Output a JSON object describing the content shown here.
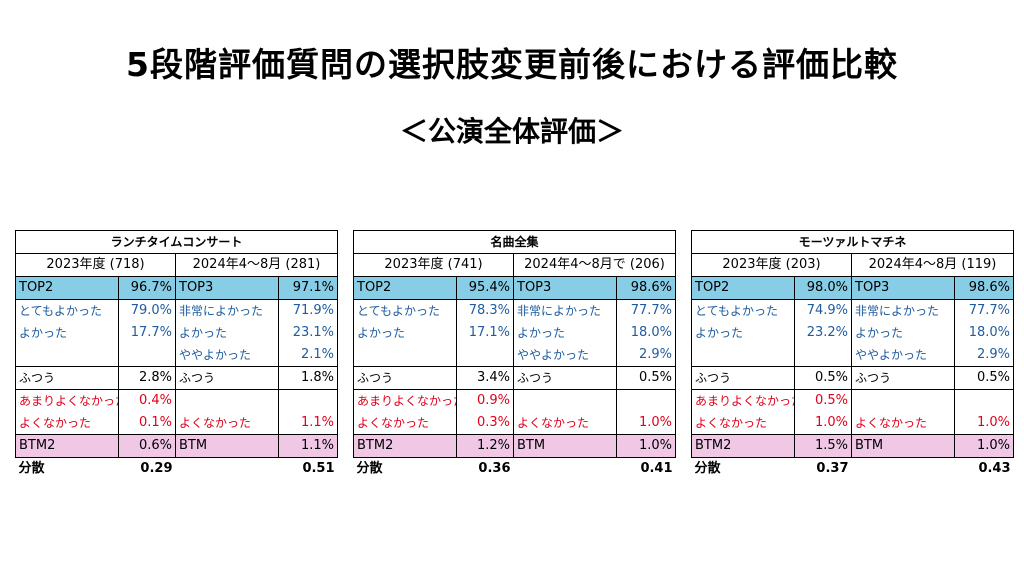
{
  "title": "5段階評価質問の選択肢変更前後における評価比較",
  "subtitle": "＜公演全体評価＞",
  "labels": {
    "top2": "TOP2",
    "top3": "TOP3",
    "very_good": "とてもよかった",
    "extremely_good": "非常によかった",
    "good": "よかった",
    "somewhat_good": "ややよかった",
    "neutral": "ふつう",
    "not_so_good": "あまりよくなかった",
    "not_good": "よくなかった",
    "btm2": "BTM2",
    "btm": "BTM",
    "variance": "分散"
  },
  "colors": {
    "top_row": "#87cde6",
    "btm_row": "#f0c8e6",
    "blue_text": "#1f5b9e",
    "red_text": "#e0001b"
  },
  "tables": [
    {
      "name": "ランチタイムコンサート",
      "before_period": "2023年度 (718)",
      "after_period": "2024年4～8月 (281)",
      "before": {
        "top2": "96.7%",
        "very_good": "79.0%",
        "good": "17.7%",
        "neutral": "2.8%",
        "not_so_good": "0.4%",
        "not_good": "0.1%",
        "btm2": "0.6%",
        "variance": "0.29"
      },
      "after": {
        "top3": "97.1%",
        "extremely_good": "71.9%",
        "good": "23.1%",
        "somewhat_good": "2.1%",
        "neutral": "1.8%",
        "not_good": "1.1%",
        "btm": "1.1%",
        "variance": "0.51"
      }
    },
    {
      "name": "名曲全集",
      "before_period": "2023年度 (741)",
      "after_period": "2024年4～8月で (206)",
      "before": {
        "top2": "95.4%",
        "very_good": "78.3%",
        "good": "17.1%",
        "neutral": "3.4%",
        "not_so_good": "0.9%",
        "not_good": "0.3%",
        "btm2": "1.2%",
        "variance": "0.36"
      },
      "after": {
        "top3": "98.6%",
        "extremely_good": "77.7%",
        "good": "18.0%",
        "somewhat_good": "2.9%",
        "neutral": "0.5%",
        "not_good": "1.0%",
        "btm": "1.0%",
        "variance": "0.41"
      }
    },
    {
      "name": "モーツァルトマチネ",
      "before_period": "2023年度 (203)",
      "after_period": "2024年4～8月 (119)",
      "before": {
        "top2": "98.0%",
        "very_good": "74.9%",
        "good": "23.2%",
        "neutral": "0.5%",
        "not_so_good": "0.5%",
        "not_good": "1.0%",
        "btm2": "1.5%",
        "variance": "0.37"
      },
      "after": {
        "top3": "98.6%",
        "extremely_good": "77.7%",
        "good": "18.0%",
        "somewhat_good": "2.9%",
        "neutral": "0.5%",
        "not_good": "1.0%",
        "btm": "1.0%",
        "variance": "0.43"
      }
    }
  ]
}
